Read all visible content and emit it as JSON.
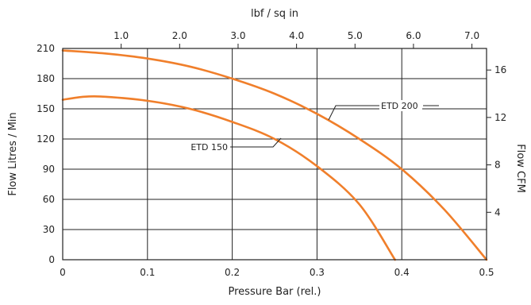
{
  "chart_data": {
    "type": "line",
    "title": "",
    "x_axis": {
      "label": "Pressure Bar (rel.)",
      "range": [
        0,
        0.5
      ],
      "ticks": [
        "0",
        "0.1",
        "0.2",
        "0.3",
        "0.4",
        "0.5"
      ]
    },
    "x2_axis": {
      "label": "lbf / sq in",
      "range": [
        0,
        7.25
      ],
      "ticks": [
        {
          "value": 1.0,
          "label": "1.0"
        },
        {
          "value": 2.0,
          "label": "2.0"
        },
        {
          "value": 3.0,
          "label": "3.0"
        },
        {
          "value": 4.0,
          "label": "4.0"
        },
        {
          "value": 5.0,
          "label": "5.0"
        },
        {
          "value": 6.0,
          "label": "6.0"
        },
        {
          "value": 7.0,
          "label": "7.0"
        }
      ]
    },
    "y_axis": {
      "label": "Flow Litres / Min",
      "range": [
        0,
        210
      ],
      "ticks": [
        "0",
        "30",
        "60",
        "90",
        "120",
        "150",
        "180",
        "210"
      ]
    },
    "y2_axis": {
      "label": "Flow CFM",
      "range": [
        0,
        17.82
      ],
      "ticks": [
        {
          "value": 4,
          "label": "4"
        },
        {
          "value": 8,
          "label": "8"
        },
        {
          "value": 12,
          "label": "12"
        },
        {
          "value": 16,
          "label": "16"
        }
      ]
    },
    "grid": true,
    "series": [
      {
        "name": "ETD 200",
        "color": "#f07f2b",
        "x": [
          0,
          0.05,
          0.1,
          0.15,
          0.2,
          0.25,
          0.3,
          0.35,
          0.4,
          0.45,
          0.5
        ],
        "y": [
          208,
          205,
          200,
          192,
          180,
          165,
          145,
          120,
          90,
          50,
          0
        ]
      },
      {
        "name": "ETD 150",
        "color": "#f07f2b",
        "x": [
          0,
          0.025,
          0.05,
          0.1,
          0.15,
          0.2,
          0.25,
          0.3,
          0.35,
          0.392
        ],
        "y": [
          159,
          162,
          162,
          158,
          150,
          137,
          120,
          93,
          55,
          0
        ]
      }
    ],
    "annotations": [
      {
        "text": "ETD 200",
        "series": "ETD 200"
      },
      {
        "text": "ETD 150",
        "series": "ETD 150"
      }
    ]
  }
}
